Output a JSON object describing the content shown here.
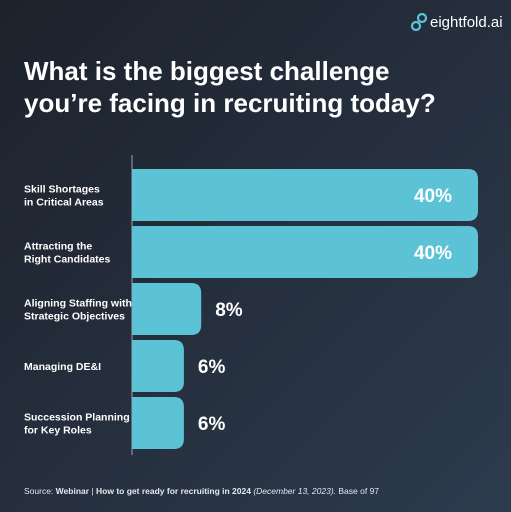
{
  "brand": "eightfold.ai",
  "chart_data": {
    "type": "bar",
    "orientation": "horizontal",
    "title": "What is the biggest challenge\nyou’re facing in recruiting today?",
    "categories": [
      "Skill Shortages\nin Critical Areas",
      "Attracting the\nRight Candidates",
      "Aligning Staffing with\nStrategic Objectives",
      "Managing DE&I",
      "Succession Planning\nfor Key Roles"
    ],
    "values": [
      40,
      40,
      8,
      6,
      6
    ],
    "value_labels": [
      "40%",
      "40%",
      "8%",
      "6%",
      "6%"
    ],
    "color": "#5cc3d6"
  },
  "source": [
    "Source:",
    "Webinar",
    "|",
    "How to get ready for recruiting in 2024",
    "(December 13, 2023).",
    "Base of 97"
  ]
}
